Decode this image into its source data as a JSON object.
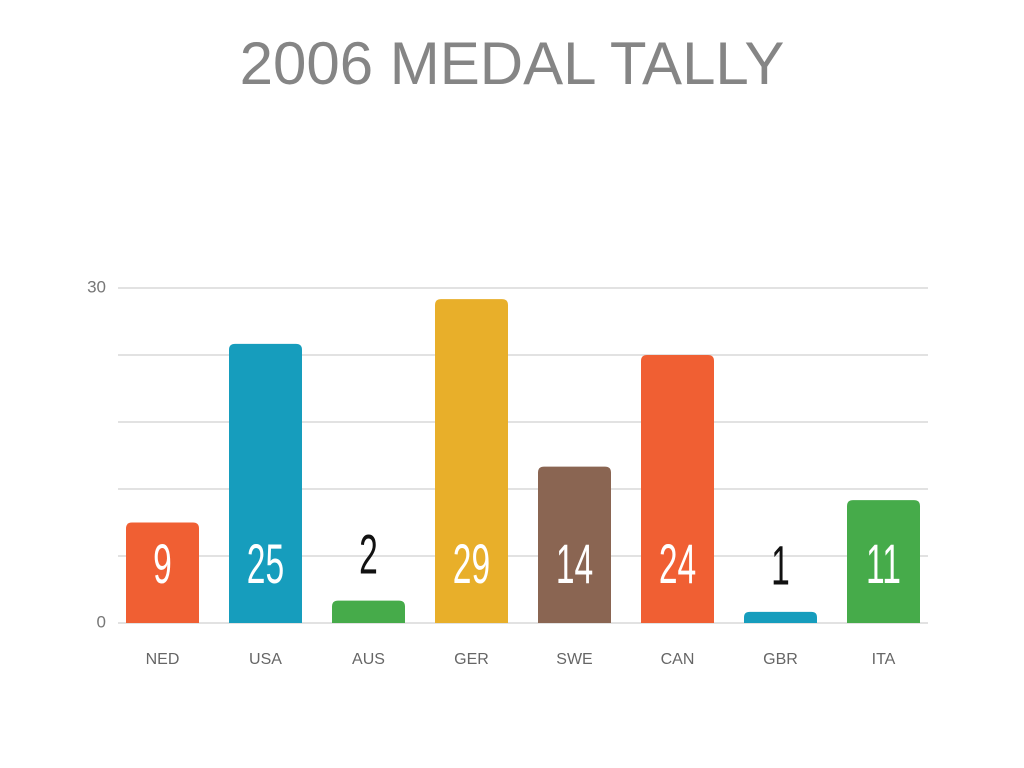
{
  "chart_data": {
    "type": "bar",
    "title": "2006 MEDAL TALLY",
    "categories": [
      "NED",
      "USA",
      "AUS",
      "GER",
      "SWE",
      "CAN",
      "GBR",
      "ITA"
    ],
    "values": [
      9,
      25,
      2,
      29,
      14,
      24,
      1,
      11
    ],
    "colors": [
      "#f05f33",
      "#169dbd",
      "#46ab4a",
      "#e8af2a",
      "#8a6552",
      "#f05f33",
      "#169dbd",
      "#46ab4a"
    ],
    "ylim": [
      0,
      30
    ],
    "yticks": [
      0,
      30
    ],
    "gridlines": [
      0,
      6,
      12,
      18,
      24,
      30
    ],
    "grid": true
  }
}
